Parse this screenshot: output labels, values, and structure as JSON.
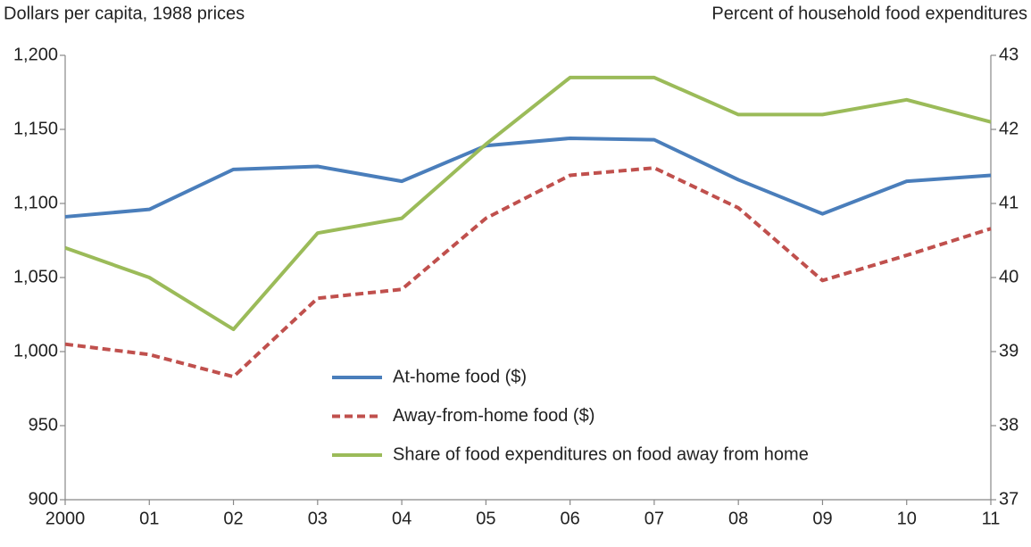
{
  "chart_data": {
    "type": "line",
    "y_label": "Dollars per capita, 1988 prices",
    "y2_label": "Percent of household food expenditures",
    "categories": [
      "2000",
      "01",
      "02",
      "03",
      "04",
      "05",
      "06",
      "07",
      "08",
      "09",
      "10",
      "11"
    ],
    "series": [
      {
        "name": "At-home food ($)",
        "color": "#4a7ebb",
        "style": "solid",
        "values": [
          1091,
          1096,
          1123,
          1125,
          1115,
          1139,
          1144,
          1143,
          1116,
          1093,
          1115,
          1119
        ]
      },
      {
        "name": "Away-from-home food ($)",
        "color": "#c0504d",
        "style": "dashed",
        "values": [
          1005,
          998,
          983,
          1036,
          1042,
          1090,
          1119,
          1124,
          1097,
          1048,
          1065,
          1083
        ]
      },
      {
        "name": "Share of food expenditures on food away from home",
        "color": "#9bbb59",
        "style": "solid",
        "axis": "y2",
        "values": [
          40.4,
          40.0,
          39.3,
          40.6,
          40.8,
          41.8,
          42.7,
          42.7,
          42.2,
          42.2,
          42.4,
          42.1
        ]
      }
    ],
    "ylim": [
      900,
      1200
    ],
    "yticks": [
      900,
      950,
      {
        "value": 1000,
        "label": "1,000"
      },
      {
        "value": 1050,
        "label": "1,050"
      },
      {
        "value": 1100,
        "label": "1,100"
      },
      {
        "value": 1150,
        "label": "1,150"
      },
      {
        "value": 1200,
        "label": "1,200"
      }
    ],
    "y2lim": [
      37,
      43
    ],
    "y2ticks": [
      37,
      38,
      39,
      40,
      41,
      42,
      43
    ]
  }
}
